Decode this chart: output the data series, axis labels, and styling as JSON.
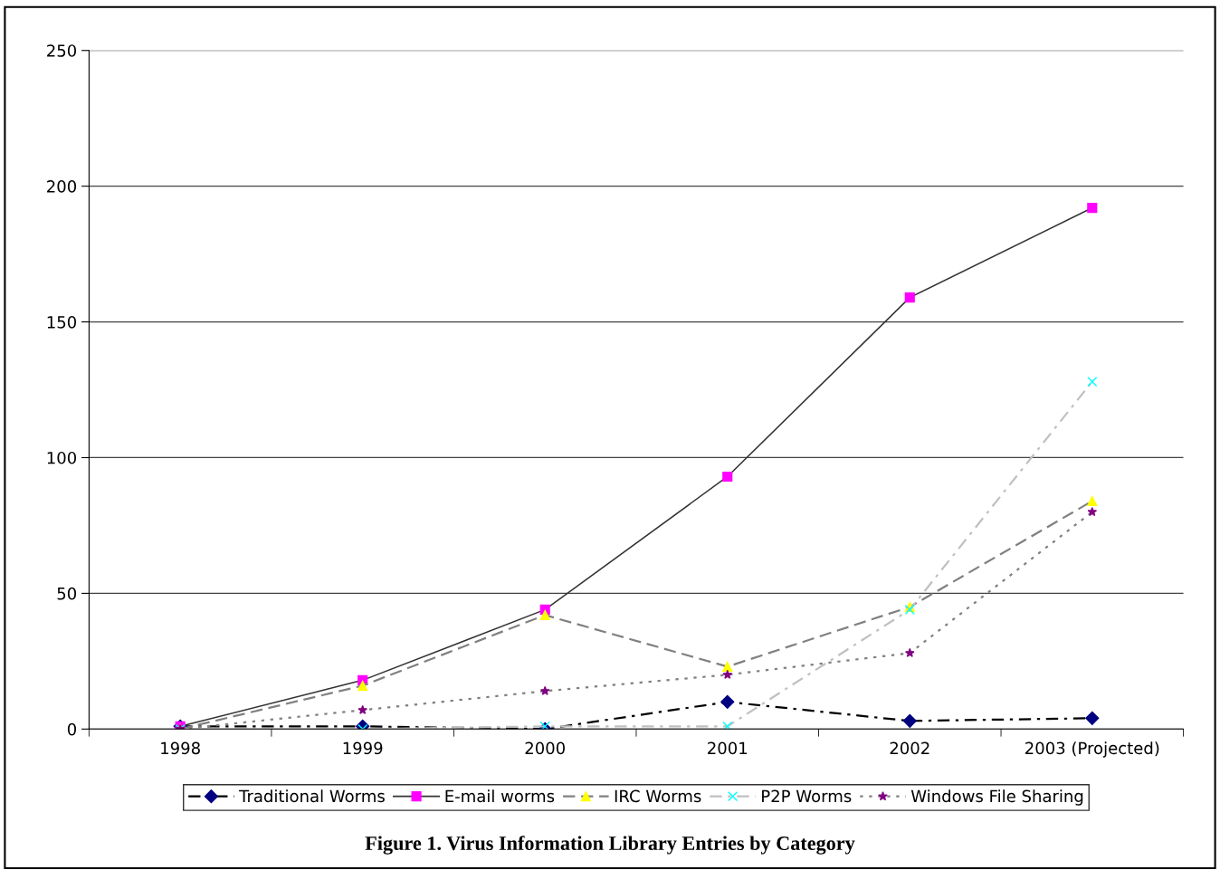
{
  "chart_data": {
    "type": "line",
    "title": "Figure 1. Virus Information Library Entries by Category",
    "categories": [
      "1998",
      "1999",
      "2000",
      "2001",
      "2002",
      "2003 (Projected)"
    ],
    "series": [
      {
        "name": "Traditional Worms",
        "color": "#000080",
        "marker": "diamond",
        "line_style": "dashdot",
        "values": [
          1,
          1,
          0,
          10,
          3,
          4
        ]
      },
      {
        "name": "E-mail worms",
        "color": "#ff00ff",
        "marker": "square",
        "line_style": "solid",
        "values": [
          1,
          18,
          44,
          93,
          159,
          192
        ]
      },
      {
        "name": "IRC Worms",
        "color": "#ffff00",
        "marker": "triangle",
        "line_style": "dashed",
        "values": [
          0,
          16,
          42,
          23,
          45,
          84
        ]
      },
      {
        "name": "P2P Worms",
        "color": "#00ffff",
        "marker": "cross",
        "line_style": "dashdot",
        "values": [
          0,
          0,
          1,
          1,
          44,
          128
        ]
      },
      {
        "name": "Windows File Sharing",
        "color": "#800080",
        "marker": "star",
        "line_style": "dotted",
        "values": [
          0,
          7,
          14,
          20,
          28,
          80
        ]
      }
    ],
    "ylim": [
      0,
      250
    ],
    "yticks": [
      0,
      50,
      100,
      150,
      200,
      250
    ],
    "grid": "y",
    "legend": "bottom"
  }
}
